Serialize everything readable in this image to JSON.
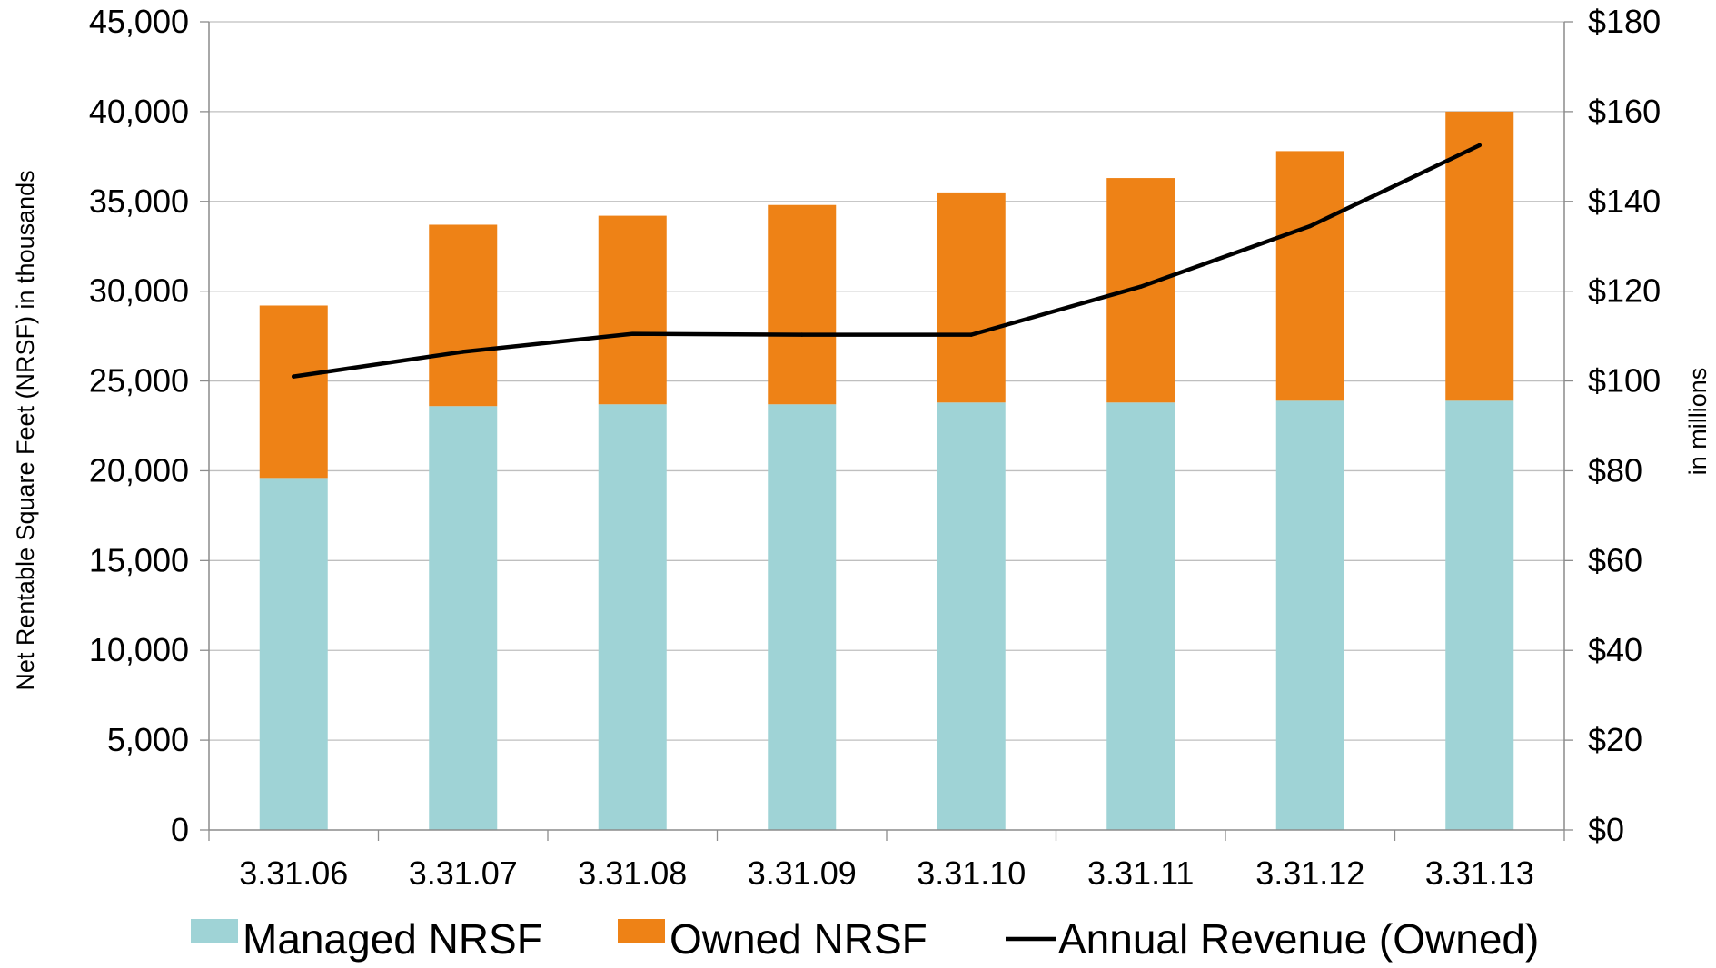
{
  "chart_data": {
    "type": "bar",
    "stacked": true,
    "categories": [
      "3.31.06",
      "3.31.07",
      "3.31.08",
      "3.31.09",
      "3.31.10",
      "3.31.11",
      "3.31.12",
      "3.31.13"
    ],
    "series": [
      {
        "name": "Managed NRSF",
        "type": "bar",
        "axis": "left",
        "color": "#9fd3d6",
        "values": [
          19600,
          23600,
          23700,
          23700,
          23800,
          23800,
          23900,
          23900
        ]
      },
      {
        "name": "Owned NRSF",
        "type": "bar",
        "axis": "left",
        "color": "#ee8216",
        "values": [
          9600,
          10100,
          10500,
          11100,
          11700,
          12500,
          13900,
          16100
        ]
      },
      {
        "name": "Annual Revenue (Owned)",
        "type": "line",
        "axis": "right",
        "color": "#000000",
        "values": [
          101,
          106.5,
          110.5,
          110.3,
          110.3,
          121,
          134.5,
          152.5
        ]
      }
    ],
    "y_left": {
      "label": "Net Rentable Square Feet (NRSF) in thousands",
      "min": 0,
      "max": 45000,
      "step": 5000,
      "tick_labels": [
        "0",
        "5,000",
        "10,000",
        "15,000",
        "20,000",
        "25,000",
        "30,000",
        "35,000",
        "40,000",
        "45,000"
      ]
    },
    "y_right": {
      "label": "in millions",
      "min": 0,
      "max": 180,
      "step": 20,
      "tick_labels": [
        "$0",
        "$20",
        "$40",
        "$60",
        "$80",
        "$100",
        "$120",
        "$140",
        "$160",
        "$180"
      ]
    },
    "grid": true,
    "legend_position": "bottom"
  }
}
